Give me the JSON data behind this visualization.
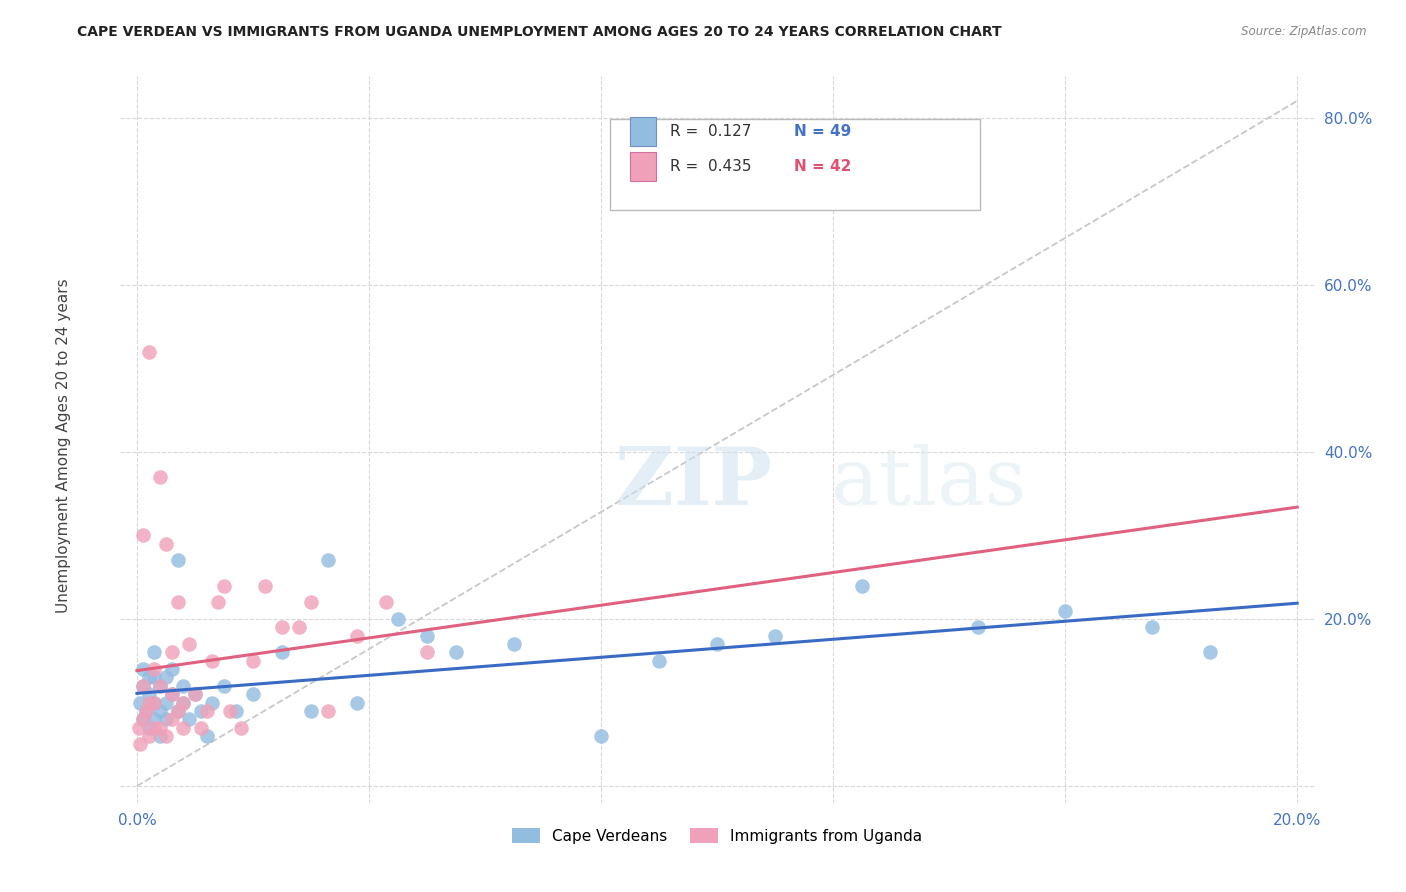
{
  "title": "CAPE VERDEAN VS IMMIGRANTS FROM UGANDA UNEMPLOYMENT AMONG AGES 20 TO 24 YEARS CORRELATION CHART",
  "source": "Source: ZipAtlas.com",
  "ylabel": "Unemployment Among Ages 20 to 24 years",
  "xlim": [
    0.0,
    0.2
  ],
  "ylim": [
    -0.02,
    0.85
  ],
  "x_ticks": [
    0.0,
    0.04,
    0.08,
    0.12,
    0.16,
    0.2
  ],
  "y_ticks": [
    0.0,
    0.2,
    0.4,
    0.6,
    0.8
  ],
  "watermark_zip": "ZIP",
  "watermark_atlas": "atlas",
  "blue_color": "#92bce0",
  "pink_color": "#f0a0b8",
  "blue_line_color": "#3a6bc4",
  "pink_line_color": "#e06080",
  "diag_line_color": "#c8c8c8",
  "legend_r_blue": "R =  0.127",
  "legend_n_blue": "N = 49",
  "legend_r_pink": "R =  0.435",
  "legend_n_pink": "N = 42",
  "legend_label_blue": "Cape Verdeans",
  "legend_label_pink": "Immigrants from Uganda",
  "cape_verdean_x": [
    0.0005,
    0.001,
    0.001,
    0.001,
    0.0015,
    0.002,
    0.002,
    0.002,
    0.003,
    0.003,
    0.003,
    0.003,
    0.004,
    0.004,
    0.004,
    0.005,
    0.005,
    0.005,
    0.006,
    0.006,
    0.007,
    0.007,
    0.008,
    0.008,
    0.009,
    0.01,
    0.011,
    0.012,
    0.013,
    0.015,
    0.017,
    0.02,
    0.025,
    0.03,
    0.033,
    0.038,
    0.045,
    0.05,
    0.055,
    0.065,
    0.08,
    0.09,
    0.1,
    0.11,
    0.125,
    0.145,
    0.16,
    0.175,
    0.185
  ],
  "cape_verdean_y": [
    0.1,
    0.08,
    0.12,
    0.14,
    0.09,
    0.07,
    0.11,
    0.13,
    0.08,
    0.1,
    0.13,
    0.16,
    0.09,
    0.12,
    0.06,
    0.1,
    0.13,
    0.08,
    0.11,
    0.14,
    0.09,
    0.27,
    0.1,
    0.12,
    0.08,
    0.11,
    0.09,
    0.06,
    0.1,
    0.12,
    0.09,
    0.11,
    0.16,
    0.09,
    0.27,
    0.1,
    0.2,
    0.18,
    0.16,
    0.17,
    0.06,
    0.15,
    0.17,
    0.18,
    0.24,
    0.19,
    0.21,
    0.19,
    0.16
  ],
  "uganda_x": [
    0.0003,
    0.0005,
    0.001,
    0.001,
    0.001,
    0.0015,
    0.002,
    0.002,
    0.002,
    0.003,
    0.003,
    0.003,
    0.004,
    0.004,
    0.004,
    0.005,
    0.005,
    0.006,
    0.006,
    0.006,
    0.007,
    0.007,
    0.008,
    0.008,
    0.009,
    0.01,
    0.011,
    0.012,
    0.013,
    0.014,
    0.015,
    0.016,
    0.018,
    0.02,
    0.022,
    0.025,
    0.028,
    0.03,
    0.033,
    0.038,
    0.043,
    0.05
  ],
  "uganda_y": [
    0.07,
    0.05,
    0.08,
    0.12,
    0.3,
    0.09,
    0.06,
    0.1,
    0.52,
    0.07,
    0.1,
    0.14,
    0.07,
    0.12,
    0.37,
    0.06,
    0.29,
    0.08,
    0.11,
    0.16,
    0.09,
    0.22,
    0.07,
    0.1,
    0.17,
    0.11,
    0.07,
    0.09,
    0.15,
    0.22,
    0.24,
    0.09,
    0.07,
    0.15,
    0.24,
    0.19,
    0.19,
    0.22,
    0.09,
    0.18,
    0.22,
    0.16
  ]
}
